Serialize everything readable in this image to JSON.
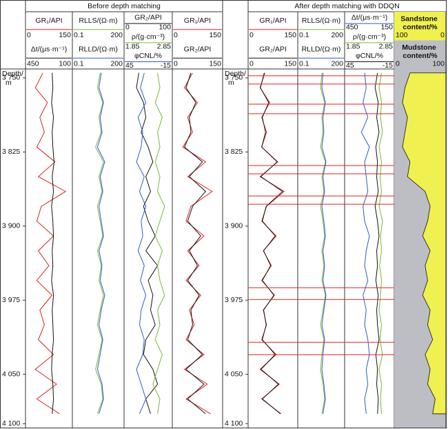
{
  "depth_label": [
    "Depth/",
    "m"
  ],
  "depth_axis": {
    "ylim": [
      3741,
      4104
    ],
    "ticks": [
      {
        "value": 3750,
        "label": "3 750"
      },
      {
        "value": 3825,
        "label": "3 825"
      },
      {
        "value": 3900,
        "label": "3 900"
      },
      {
        "value": 3975,
        "label": "3 975"
      },
      {
        "value": 4050,
        "label": "4 050"
      },
      {
        "value": 4100,
        "label": "4 100"
      }
    ]
  },
  "depths": [
    3745,
    3760,
    3775,
    3790,
    3805,
    3820,
    3835,
    3850,
    3865,
    3880,
    3895,
    3910,
    3925,
    3940,
    3955,
    3970,
    3985,
    4000,
    4015,
    4030,
    4045,
    4060,
    4075,
    4090
  ],
  "panels": [
    {
      "title": "Before depth matching",
      "tracks": [
        {
          "curves": [
            {
              "label": "GR₁/API",
              "xlim": [
                0,
                150
              ],
              "color": "#e02020",
              "values": [
                55,
                30,
                70,
                45,
                60,
                35,
                95,
                40,
                130,
                50,
                35,
                90,
                40,
                75,
                35,
                85,
                45,
                60,
                40,
                90,
                30,
                100,
                35,
                110
              ]
            },
            {
              "label": "Δt/(μs·m⁻¹)",
              "xlim": [
                450,
                100
              ],
              "color": "#111111",
              "values": [
                250,
                245,
                255,
                240,
                250,
                245,
                235,
                250,
                240,
                255,
                245,
                240,
                250,
                245,
                255,
                240,
                250,
                245,
                240,
                250,
                255,
                245,
                240,
                250
              ]
            }
          ]
        },
        {
          "log": true,
          "curves": [
            {
              "label": "RLLS/(Ω·m)",
              "xlim": [
                0.1,
                200
              ],
              "color": "#7ab82e",
              "values": [
                6,
                4,
                9,
                5,
                7,
                3,
                10,
                5,
                8,
                4,
                6,
                9,
                4,
                7,
                5,
                10,
                6,
                4,
                8,
                5,
                3,
                7,
                9,
                4
              ]
            },
            {
              "label": "RLLD/(Ω·m)",
              "xlim": [
                0.1,
                200
              ],
              "color": "#2a5cc8",
              "values": [
                7,
                5,
                10,
                6,
                8,
                4,
                12,
                6,
                9,
                5,
                7,
                10,
                5,
                8,
                6,
                12,
                7,
                5,
                9,
                6,
                4,
                8,
                10,
                5
              ]
            }
          ]
        },
        {
          "curves": [
            {
              "label": "GR₂/API",
              "xlim": [
                0,
                100
              ],
              "color": "#111111",
              "values": [
                30,
                25,
                40,
                45,
                35,
                50,
                60,
                45,
                55,
                40,
                50,
                65,
                45,
                70,
                50,
                60,
                55,
                65,
                45,
                40,
                60,
                70,
                45,
                55
              ]
            },
            {
              "label": "ρ/(g·cm⁻³)",
              "xlim": [
                1.85,
                2.85
              ],
              "color": "#7ab82e",
              "values": [
                2.55,
                2.6,
                2.5,
                2.65,
                2.55,
                2.6,
                2.5,
                2.6,
                2.55,
                2.7,
                2.6,
                2.5,
                2.65,
                2.55,
                2.6,
                2.7,
                2.55,
                2.6,
                2.5,
                2.65,
                2.55,
                2.45,
                2.6,
                2.55
              ]
            },
            {
              "label": "φCNL/%",
              "xlim": [
                45,
                -15
              ],
              "color": "#2a5cc8",
              "values": [
                20,
                25,
                18,
                28,
                22,
                24,
                30,
                20,
                26,
                18,
                24,
                22,
                28,
                20,
                25,
                18,
                24,
                26,
                20,
                22,
                30,
                24,
                18,
                26
              ]
            }
          ]
        },
        {
          "curves": [
            {
              "label": "GR₁/API",
              "xlim": [
                0,
                150
              ],
              "color": "#e02020",
              "values": [
                60,
                35,
                75,
                45,
                60,
                30,
                100,
                45,
                120,
                55,
                40,
                95,
                45,
                80,
                40,
                85,
                50,
                65,
                40,
                95,
                35,
                105,
                40,
                115
              ]
            },
            {
              "label": "GR₂/API",
              "xlim": [
                0,
                150
              ],
              "color": "#111111",
              "values": [
                55,
                40,
                70,
                50,
                55,
                35,
                90,
                50,
                100,
                60,
                45,
                85,
                50,
                75,
                45,
                80,
                55,
                60,
                45,
                90,
                40,
                95,
                45,
                100
              ]
            }
          ]
        }
      ]
    },
    {
      "title": "After depth matching with DDQN",
      "match_lines": [
        3747.9,
        3756.3,
        3776.6,
        3786.3,
        3838.7,
        3847.1,
        3869.5,
        3877.9,
        3962.4,
        3974.3,
        4017.6,
        4030.2
      ],
      "tracks": [
        {
          "curves": [
            {
              "label": "GR₁/API",
              "xlim": [
                0,
                150
              ],
              "color": "#e02020",
              "values": [
                50,
                35,
                65,
                40,
                55,
                40,
                90,
                35,
                110,
                55,
                40,
                85,
                45,
                70,
                40,
                80,
                45,
                55,
                40,
                85,
                35,
                95,
                40,
                100
              ]
            },
            {
              "label": "GR₂/API",
              "xlim": [
                0,
                150
              ],
              "color": "#111111",
              "values": [
                48,
                36,
                62,
                42,
                52,
                40,
                88,
                37,
                105,
                54,
                42,
                82,
                46,
                68,
                42,
                78,
                46,
                54,
                42,
                82,
                38,
                92,
                42,
                98
              ]
            }
          ]
        },
        {
          "log": true,
          "curves": [
            {
              "label": "RLLS/(Ω·m)",
              "xlim": [
                0.1,
                200
              ],
              "color": "#7ab82e",
              "values": [
                5,
                4,
                8,
                5,
                6,
                4,
                9,
                5,
                7,
                4,
                6,
                8,
                5,
                7,
                5,
                9,
                6,
                4,
                7,
                5,
                4,
                6,
                8,
                5
              ]
            },
            {
              "label": "RLLD/(Ω·m)",
              "xlim": [
                0.1,
                200
              ],
              "color": "#2a5cc8",
              "values": [
                6,
                5,
                9,
                6,
                7,
                5,
                10,
                6,
                8,
                5,
                7,
                9,
                6,
                8,
                6,
                10,
                7,
                5,
                8,
                6,
                5,
                7,
                9,
                6
              ]
            }
          ]
        },
        {
          "curves": [
            {
              "label": "Δt/(μs·m⁻¹)",
              "xlim": [
                450,
                150
              ],
              "color": "#2a5cc8",
              "values": [
                330,
                320,
                340,
                310,
                350,
                300,
                330,
                320,
                310,
                340,
                330,
                300,
                320,
                330,
                310,
                340,
                320,
                330,
                310,
                300,
                320,
                310,
                330,
                320
              ]
            },
            {
              "label": "ρ/(g·cm⁻³)",
              "xlim": [
                1.85,
                2.85
              ],
              "color": "#7ab82e",
              "values": [
                2.6,
                2.55,
                2.6,
                2.58,
                2.62,
                2.55,
                2.6,
                2.57,
                2.6,
                2.55,
                2.62,
                2.58,
                2.6,
                2.56,
                2.6,
                2.58,
                2.55,
                2.6,
                2.57,
                2.62,
                2.55,
                2.6,
                2.58,
                2.6
              ]
            },
            {
              "label": "φCNL/%",
              "xlim": [
                45,
                -15
              ],
              "color": "#111111",
              "values": [
                5,
                8,
                4,
                6,
                3,
                7,
                5,
                6,
                4,
                8,
                5,
                3,
                6,
                5,
                7,
                4,
                6,
                5,
                3,
                7,
                5,
                6,
                4,
                5
              ]
            }
          ]
        },
        {
          "type": "fill",
          "curves": [
            {
              "label": "Sandstone content/%",
              "xlim": [
                100,
                0
              ],
              "color": "#f0f050",
              "values": [
                70,
                80,
                85,
                75,
                80,
                85,
                70,
                75,
                40,
                30,
                35,
                45,
                30,
                40,
                35,
                45,
                30,
                35,
                25,
                40,
                30,
                35,
                20,
                25
              ]
            },
            {
              "label": "Mudstone content/%",
              "xlim": [
                0,
                100
              ],
              "color": "#bdbdc4"
            }
          ]
        }
      ]
    }
  ]
}
